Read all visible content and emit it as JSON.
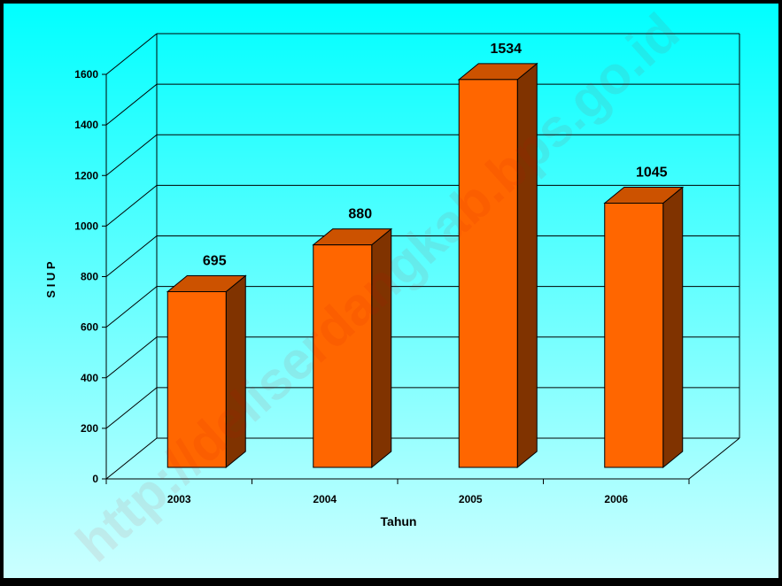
{
  "colors": {
    "background_top": "#00ffff",
    "background_bottom": "#ccffff",
    "bar_front": "#ff6600",
    "bar_side": "#803300",
    "bar_top": "#cc5200",
    "grid": "#000000",
    "watermark": "#cc0000"
  },
  "watermark": "http://deliserdangkab.bps.go.id",
  "chart_data": {
    "type": "bar",
    "title": "",
    "xlabel": "Tahun",
    "ylabel": "S I U P",
    "categories": [
      "2003",
      "2004",
      "2005",
      "2006"
    ],
    "values": [
      695,
      880,
      1534,
      1045
    ],
    "data_labels": [
      "695",
      "880",
      "1534",
      "1045"
    ],
    "ylim": [
      0,
      1600
    ],
    "yticks": [
      0,
      200,
      400,
      600,
      800,
      1000,
      1200,
      1400,
      1600
    ],
    "ytick_labels": [
      "0",
      "200",
      "400",
      "600",
      "800",
      "1000",
      "1200",
      "1400",
      "1600"
    ],
    "grid": true,
    "legend": "none",
    "style": "3d"
  }
}
